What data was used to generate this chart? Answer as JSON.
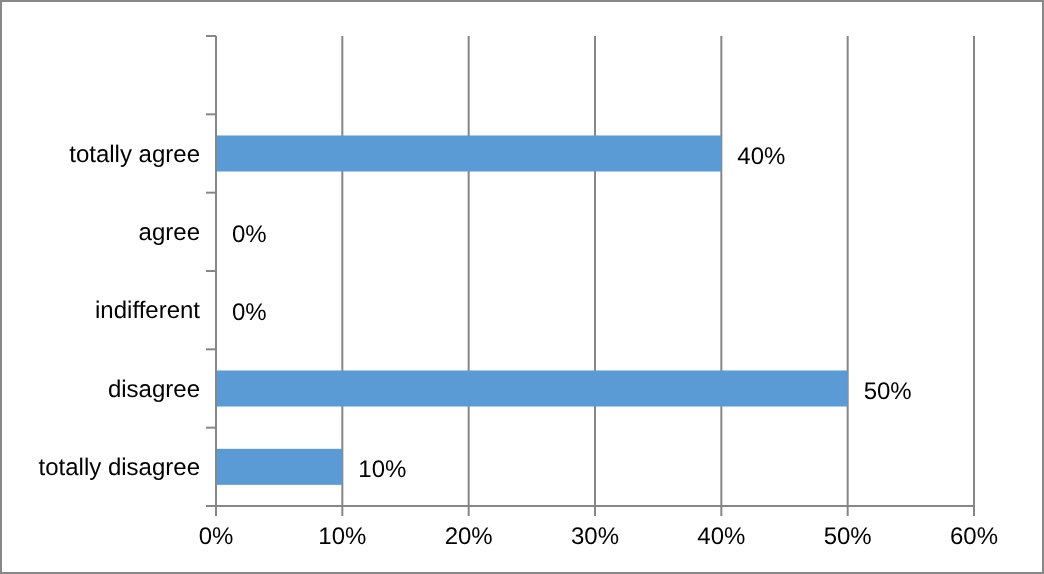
{
  "chart_data": {
    "type": "bar",
    "orientation": "horizontal",
    "categories": [
      null,
      "totally agree",
      "agree",
      "indifferent",
      "disagree",
      "totally disagree"
    ],
    "values": [
      null,
      40,
      0,
      0,
      50,
      10
    ],
    "value_labels": [
      null,
      "40%",
      "0%",
      "0%",
      "50%",
      "10%"
    ],
    "color": "#5b9bd5",
    "xlim": [
      0,
      60
    ],
    "xticks": [
      {
        "value": 0,
        "label": "0%"
      },
      {
        "value": 10,
        "label": "10%"
      },
      {
        "value": 20,
        "label": "20%"
      },
      {
        "value": 30,
        "label": "30%"
      },
      {
        "value": 40,
        "label": "40%"
      },
      {
        "value": 50,
        "label": "50%"
      },
      {
        "value": 60,
        "label": "60%"
      }
    ],
    "grid": "x"
  }
}
